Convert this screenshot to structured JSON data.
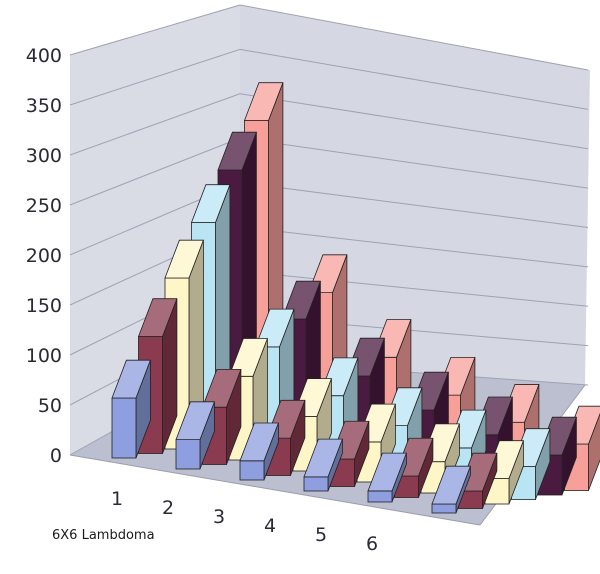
{
  "chart_data": {
    "type": "bar",
    "subtype": "3d-column",
    "caption": "6X6 Lambdoma",
    "title": "",
    "xlabel": "",
    "ylabel": "",
    "categories": [
      "1",
      "2",
      "3",
      "4",
      "5",
      "6"
    ],
    "ylim": [
      0,
      400
    ],
    "yticks": [
      "0",
      "50",
      "100",
      "150",
      "200",
      "250",
      "300",
      "350",
      "400"
    ],
    "grid": true,
    "series": [
      {
        "color": "#8e9ede",
        "values": [
          60,
          30,
          20,
          15,
          12,
          10
        ]
      },
      {
        "color": "#8a3b50",
        "values": [
          120,
          60,
          40,
          30,
          24,
          20
        ]
      },
      {
        "color": "#fff6c8",
        "values": [
          180,
          90,
          60,
          45,
          36,
          30
        ]
      },
      {
        "color": "#b8e4f4",
        "values": [
          240,
          120,
          80,
          60,
          48,
          40
        ]
      },
      {
        "color": "#4a1a40",
        "values": [
          300,
          150,
          100,
          75,
          60,
          50
        ]
      },
      {
        "color": "#f7a09a",
        "values": [
          360,
          180,
          120,
          90,
          72,
          60
        ]
      }
    ]
  }
}
